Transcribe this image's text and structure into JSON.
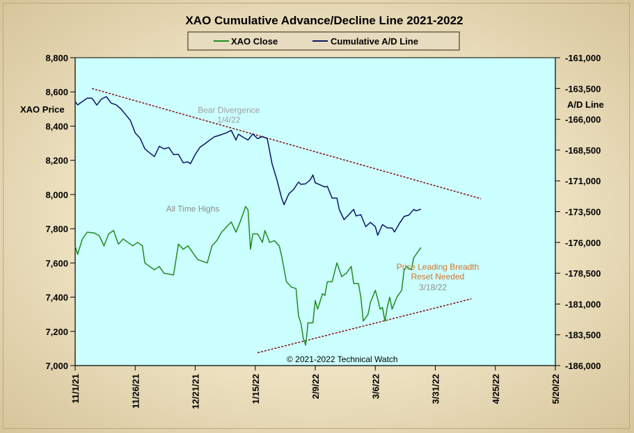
{
  "chart_data": {
    "type": "line",
    "title": "XAO Cumulative Advance/Decline Line 2021-2022",
    "ylabel_left": "XAO Price",
    "ylabel_right": "A/D Line",
    "x_domain": [
      "2021-11-01",
      "2022-05-20"
    ],
    "x_tick_labels": [
      "11/1/21",
      "11/26/21",
      "12/21/21",
      "1/15/22",
      "2/9/22",
      "3/6/22",
      "3/31/22",
      "4/25/22",
      "5/20/22"
    ],
    "ylim_left": [
      7000,
      8800
    ],
    "ylim_right": [
      -186000,
      -161000
    ],
    "left_tick_labels": [
      "7,000",
      "7,200",
      "7,400",
      "7,600",
      "7,800",
      "8,000",
      "8,200",
      "8,400",
      "8,600",
      "8,800"
    ],
    "right_tick_labels": [
      "-186,000",
      "-183,500",
      "-181,000",
      "-178,500",
      "-176,000",
      "-173,500",
      "-171,000",
      "-168,500",
      "-166,000",
      "-163,500",
      "-161,000"
    ],
    "legend": [
      "XAO Close",
      "Cumulative A/D Line"
    ],
    "credit": "© 2021-2022 Technical Watch",
    "colors": {
      "xao": "#1f8a1f",
      "ad": "#0a1466",
      "trend": "#8b1a1a",
      "plot_bg": "#ccffff"
    },
    "series": [
      {
        "name": "XAO Close",
        "axis": "left",
        "points": [
          [
            "2021-11-01",
            7700
          ],
          [
            "2021-11-02",
            7650
          ],
          [
            "2021-11-04",
            7740
          ],
          [
            "2021-11-06",
            7780
          ],
          [
            "2021-11-09",
            7775
          ],
          [
            "2021-11-11",
            7760
          ],
          [
            "2021-11-13",
            7700
          ],
          [
            "2021-11-15",
            7770
          ],
          [
            "2021-11-17",
            7790
          ],
          [
            "2021-11-19",
            7710
          ],
          [
            "2021-11-21",
            7740
          ],
          [
            "2021-11-23",
            7720
          ],
          [
            "2021-11-25",
            7700
          ],
          [
            "2021-11-27",
            7720
          ],
          [
            "2021-11-29",
            7700
          ],
          [
            "2021-11-30",
            7600
          ],
          [
            "2021-12-02",
            7580
          ],
          [
            "2021-12-04",
            7560
          ],
          [
            "2021-12-06",
            7580
          ],
          [
            "2021-12-08",
            7540
          ],
          [
            "2021-12-10",
            7535
          ],
          [
            "2021-12-12",
            7530
          ],
          [
            "2021-12-14",
            7710
          ],
          [
            "2021-12-16",
            7680
          ],
          [
            "2021-12-18",
            7700
          ],
          [
            "2021-12-20",
            7660
          ],
          [
            "2021-12-22",
            7620
          ],
          [
            "2021-12-24",
            7610
          ],
          [
            "2021-12-26",
            7600
          ],
          [
            "2021-12-28",
            7700
          ],
          [
            "2021-12-30",
            7730
          ],
          [
            "2022-01-01",
            7780
          ],
          [
            "2022-01-03",
            7810
          ],
          [
            "2022-01-05",
            7840
          ],
          [
            "2022-01-07",
            7780
          ],
          [
            "2022-01-09",
            7850
          ],
          [
            "2022-01-11",
            7930
          ],
          [
            "2022-01-12",
            7910
          ],
          [
            "2022-01-13",
            7680
          ],
          [
            "2022-01-14",
            7770
          ],
          [
            "2022-01-16",
            7770
          ],
          [
            "2022-01-18",
            7720
          ],
          [
            "2022-01-19",
            7790
          ],
          [
            "2022-01-21",
            7720
          ],
          [
            "2022-01-23",
            7730
          ],
          [
            "2022-01-25",
            7700
          ],
          [
            "2022-01-26",
            7640
          ],
          [
            "2022-01-28",
            7490
          ],
          [
            "2022-01-30",
            7460
          ],
          [
            "2022-02-01",
            7450
          ],
          [
            "2022-02-02",
            7290
          ],
          [
            "2022-02-03",
            7250
          ],
          [
            "2022-02-04",
            7160
          ],
          [
            "2022-02-05",
            7120
          ],
          [
            "2022-02-06",
            7250
          ],
          [
            "2022-02-08",
            7250
          ],
          [
            "2022-02-09",
            7380
          ],
          [
            "2022-02-10",
            7330
          ],
          [
            "2022-02-12",
            7420
          ],
          [
            "2022-02-13",
            7410
          ],
          [
            "2022-02-14",
            7490
          ],
          [
            "2022-02-16",
            7490
          ],
          [
            "2022-02-18",
            7600
          ],
          [
            "2022-02-20",
            7520
          ],
          [
            "2022-02-22",
            7540
          ],
          [
            "2022-02-24",
            7580
          ],
          [
            "2022-02-25",
            7480
          ],
          [
            "2022-02-27",
            7480
          ],
          [
            "2022-02-28",
            7400
          ],
          [
            "2022-03-01",
            7260
          ],
          [
            "2022-03-03",
            7300
          ],
          [
            "2022-03-04",
            7370
          ],
          [
            "2022-03-06",
            7440
          ],
          [
            "2022-03-07",
            7390
          ],
          [
            "2022-03-08",
            7330
          ],
          [
            "2022-03-09",
            7340
          ],
          [
            "2022-03-10",
            7260
          ],
          [
            "2022-03-11",
            7340
          ],
          [
            "2022-03-12",
            7400
          ],
          [
            "2022-03-13",
            7330
          ],
          [
            "2022-03-15",
            7400
          ],
          [
            "2022-03-17",
            7440
          ],
          [
            "2022-03-18",
            7560
          ],
          [
            "2022-03-19",
            7580
          ],
          [
            "2022-03-21",
            7560
          ],
          [
            "2022-03-22",
            7630
          ],
          [
            "2022-03-23",
            7650
          ],
          [
            "2022-03-25",
            7690
          ]
        ]
      },
      {
        "name": "Cumulative A/D Line",
        "axis": "right",
        "points": [
          [
            "2021-11-01",
            -164560
          ],
          [
            "2021-11-02",
            -164840
          ],
          [
            "2021-11-04",
            -164560
          ],
          [
            "2021-11-06",
            -164290
          ],
          [
            "2021-11-08",
            -164290
          ],
          [
            "2021-11-10",
            -164850
          ],
          [
            "2021-11-12",
            -164350
          ],
          [
            "2021-11-14",
            -164160
          ],
          [
            "2021-11-16",
            -164690
          ],
          [
            "2021-11-18",
            -164820
          ],
          [
            "2021-11-20",
            -165150
          ],
          [
            "2021-11-22",
            -165610
          ],
          [
            "2021-11-24",
            -166100
          ],
          [
            "2021-11-26",
            -167110
          ],
          [
            "2021-11-28",
            -167530
          ],
          [
            "2021-11-30",
            -168400
          ],
          [
            "2021-12-02",
            -168720
          ],
          [
            "2021-12-04",
            -169030
          ],
          [
            "2021-12-06",
            -168200
          ],
          [
            "2021-12-08",
            -168400
          ],
          [
            "2021-12-10",
            -168290
          ],
          [
            "2021-12-12",
            -168870
          ],
          [
            "2021-12-14",
            -168850
          ],
          [
            "2021-12-16",
            -169530
          ],
          [
            "2021-12-18",
            -169460
          ],
          [
            "2021-12-19",
            -169610
          ],
          [
            "2021-12-21",
            -168860
          ],
          [
            "2021-12-23",
            -168270
          ],
          [
            "2021-12-25",
            -168000
          ],
          [
            "2021-12-27",
            -167700
          ],
          [
            "2021-12-29",
            -167430
          ],
          [
            "2022-01-01",
            -167240
          ],
          [
            "2022-01-03",
            -167100
          ],
          [
            "2022-01-05",
            -166900
          ],
          [
            "2022-01-07",
            -167690
          ],
          [
            "2022-01-08",
            -167210
          ],
          [
            "2022-01-10",
            -167470
          ],
          [
            "2022-01-12",
            -167680
          ],
          [
            "2022-01-14",
            -167190
          ],
          [
            "2022-01-16",
            -167580
          ],
          [
            "2022-01-18",
            -167400
          ],
          [
            "2022-01-20",
            -167570
          ],
          [
            "2022-01-22",
            -169600
          ],
          [
            "2022-01-24",
            -170900
          ],
          [
            "2022-01-26",
            -172400
          ],
          [
            "2022-01-27",
            -172930
          ],
          [
            "2022-01-29",
            -172050
          ],
          [
            "2022-01-31",
            -171700
          ],
          [
            "2022-02-02",
            -171100
          ],
          [
            "2022-02-03",
            -171280
          ],
          [
            "2022-02-05",
            -171240
          ],
          [
            "2022-02-07",
            -170900
          ],
          [
            "2022-02-08",
            -170520
          ],
          [
            "2022-02-09",
            -171160
          ],
          [
            "2022-02-11",
            -171320
          ],
          [
            "2022-02-13",
            -171500
          ],
          [
            "2022-02-14",
            -171440
          ],
          [
            "2022-02-16",
            -172400
          ],
          [
            "2022-02-18",
            -172400
          ],
          [
            "2022-02-19",
            -173330
          ],
          [
            "2022-02-21",
            -174150
          ],
          [
            "2022-02-23",
            -173740
          ],
          [
            "2022-02-25",
            -173320
          ],
          [
            "2022-02-26",
            -173850
          ],
          [
            "2022-02-28",
            -173750
          ],
          [
            "2022-03-02",
            -174720
          ],
          [
            "2022-03-04",
            -174370
          ],
          [
            "2022-03-06",
            -174720
          ],
          [
            "2022-03-07",
            -175420
          ],
          [
            "2022-03-09",
            -174550
          ],
          [
            "2022-03-11",
            -174820
          ],
          [
            "2022-03-13",
            -174830
          ],
          [
            "2022-03-14",
            -175150
          ],
          [
            "2022-03-16",
            -174470
          ],
          [
            "2022-03-18",
            -173890
          ],
          [
            "2022-03-20",
            -173780
          ],
          [
            "2022-03-22",
            -173320
          ],
          [
            "2022-03-23",
            -173430
          ],
          [
            "2022-03-25",
            -173300
          ]
        ]
      }
    ],
    "trendlines": [
      {
        "axis": "right",
        "points": [
          [
            "2021-11-08",
            -163500
          ],
          [
            "2022-04-19",
            -172450
          ]
        ]
      },
      {
        "axis": "left",
        "points": [
          [
            "2022-01-16",
            7075
          ],
          [
            "2022-04-15",
            7390
          ]
        ]
      }
    ],
    "annotations": [
      {
        "lines": [
          "Bear Divergence",
          "1/4/22"
        ],
        "color": "#a0a0a0",
        "x": "2022-01-04",
        "y": -165500,
        "axis": "right"
      },
      {
        "lines": [
          "All Time Highs"
        ],
        "color": "#8c8c8c",
        "x": "2021-12-20",
        "y": 7900,
        "axis": "left"
      },
      {
        "lines": [
          "Price Leading Breadth",
          "Reset Needed"
        ],
        "color": "#d0742a",
        "x": "2022-04-01",
        "y": 7560,
        "axis": "left"
      },
      {
        "lines": [
          "3/18/22"
        ],
        "color": "#8c8c8c",
        "x": "2022-03-30",
        "y": 7440,
        "axis": "left"
      }
    ]
  }
}
